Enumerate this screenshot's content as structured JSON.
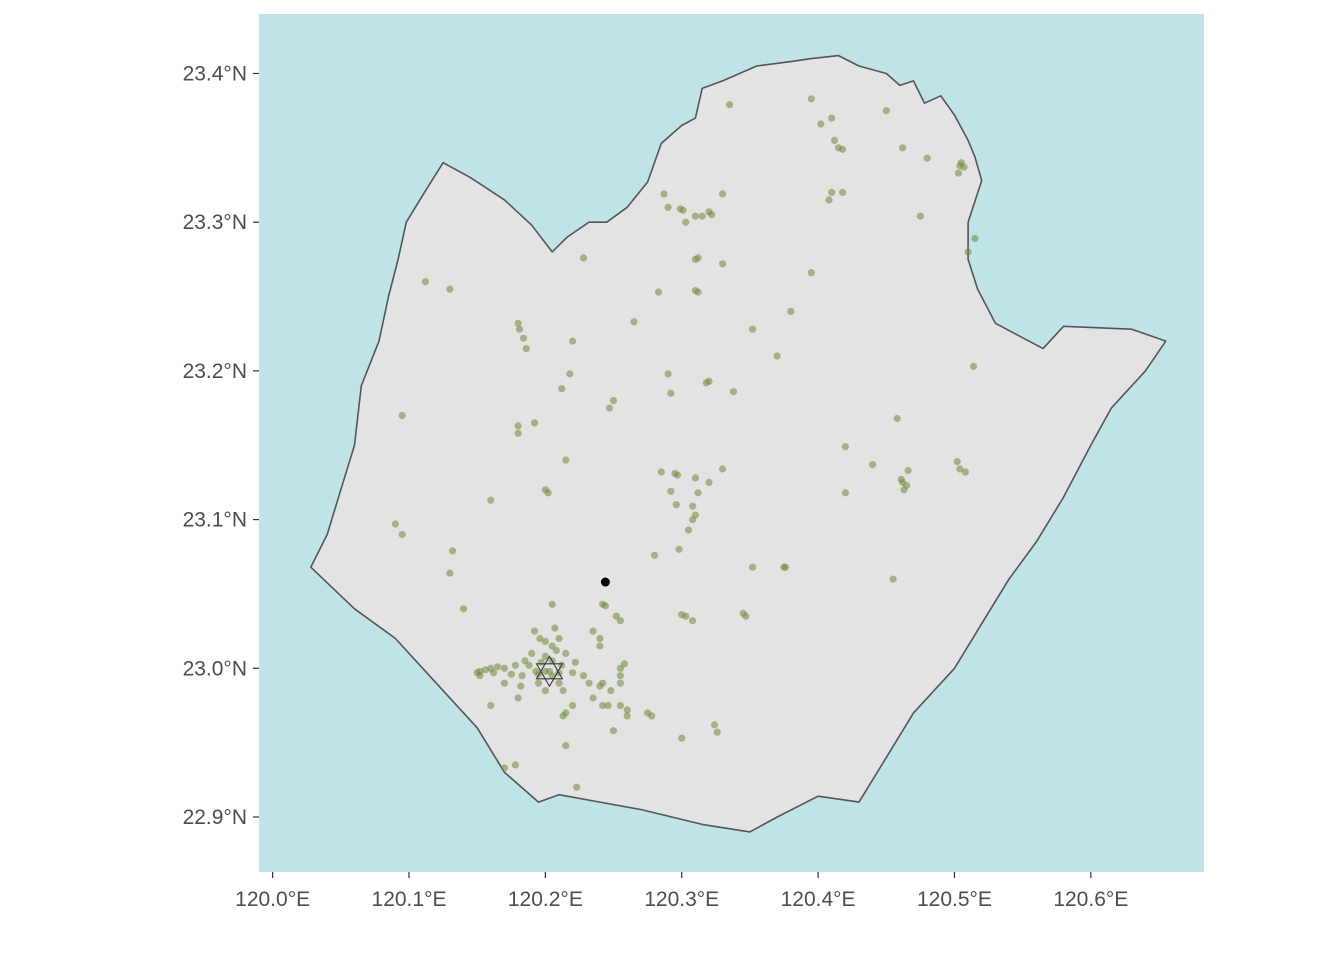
{
  "colors": {
    "sea": "#c0e3e8",
    "land": "#e3e3e3",
    "coast": "#555555",
    "point": "#6f8a3a",
    "centroid": "#000000",
    "tick_text": "#4d4d4d"
  },
  "map": {
    "x_range": [
      119.99,
      120.683
    ],
    "y_range": [
      22.863,
      23.44
    ],
    "x_ticks": [
      "120.0°E",
      "120.1°E",
      "120.2°E",
      "120.3°E",
      "120.4°E",
      "120.5°E",
      "120.6°E"
    ],
    "x_tick_values": [
      120.0,
      120.1,
      120.2,
      120.3,
      120.4,
      120.5,
      120.6
    ],
    "y_ticks": [
      "23.4°N",
      "23.3°N",
      "23.2°N",
      "23.1°N",
      "23.0°N",
      "22.9°N"
    ],
    "y_tick_values": [
      23.4,
      23.3,
      23.2,
      23.1,
      23.0,
      22.9
    ],
    "coastline": [
      [
        120.028,
        23.068
      ],
      [
        120.04,
        23.09
      ],
      [
        120.05,
        23.12
      ],
      [
        120.06,
        23.15
      ],
      [
        120.065,
        23.19
      ],
      [
        120.078,
        23.22
      ],
      [
        120.085,
        23.25
      ],
      [
        120.092,
        23.275
      ],
      [
        120.098,
        23.3
      ],
      [
        120.11,
        23.318
      ],
      [
        120.125,
        23.34
      ],
      [
        120.145,
        23.33
      ],
      [
        120.17,
        23.315
      ],
      [
        120.19,
        23.298
      ],
      [
        120.205,
        23.28
      ],
      [
        120.216,
        23.29
      ],
      [
        120.232,
        23.3
      ],
      [
        120.245,
        23.3
      ],
      [
        120.26,
        23.31
      ],
      [
        120.275,
        23.327
      ],
      [
        120.285,
        23.353
      ],
      [
        120.3,
        23.365
      ],
      [
        120.31,
        23.37
      ],
      [
        120.315,
        23.39
      ],
      [
        120.33,
        23.395
      ],
      [
        120.355,
        23.405
      ],
      [
        120.38,
        23.408
      ],
      [
        120.395,
        23.41
      ],
      [
        120.415,
        23.412
      ],
      [
        120.43,
        23.405
      ],
      [
        120.45,
        23.4
      ],
      [
        120.46,
        23.392
      ],
      [
        120.47,
        23.395
      ],
      [
        120.478,
        23.38
      ],
      [
        120.49,
        23.385
      ],
      [
        120.5,
        23.372
      ],
      [
        120.51,
        23.355
      ],
      [
        120.515,
        23.344
      ],
      [
        120.52,
        23.328
      ],
      [
        120.51,
        23.3
      ],
      [
        120.51,
        23.275
      ],
      [
        120.517,
        23.255
      ],
      [
        120.53,
        23.232
      ],
      [
        120.565,
        23.215
      ],
      [
        120.58,
        23.23
      ],
      [
        120.63,
        23.228
      ],
      [
        120.655,
        23.22
      ],
      [
        120.64,
        23.2
      ],
      [
        120.615,
        23.175
      ],
      [
        120.6,
        23.15
      ],
      [
        120.58,
        23.115
      ],
      [
        120.56,
        23.085
      ],
      [
        120.54,
        23.06
      ],
      [
        120.52,
        23.03
      ],
      [
        120.5,
        23.0
      ],
      [
        120.47,
        22.97
      ],
      [
        120.45,
        22.94
      ],
      [
        120.43,
        22.91
      ],
      [
        120.4,
        22.914
      ],
      [
        120.37,
        22.9
      ],
      [
        120.35,
        22.89
      ],
      [
        120.315,
        22.895
      ],
      [
        120.27,
        22.905
      ],
      [
        120.24,
        22.91
      ],
      [
        120.21,
        22.915
      ],
      [
        120.195,
        22.91
      ],
      [
        120.17,
        22.93
      ],
      [
        120.15,
        22.96
      ],
      [
        120.12,
        22.99
      ],
      [
        120.09,
        23.02
      ],
      [
        120.06,
        23.04
      ],
      [
        120.028,
        23.068
      ]
    ],
    "centroid": {
      "lon": 120.244,
      "lat": 23.058
    },
    "star_marker": {
      "lon": 120.203,
      "lat": 22.998
    },
    "points": [
      [
        120.335,
        23.379
      ],
      [
        120.395,
        23.383
      ],
      [
        120.45,
        23.375
      ],
      [
        120.41,
        23.37
      ],
      [
        120.402,
        23.366
      ],
      [
        120.412,
        23.355
      ],
      [
        120.415,
        23.35
      ],
      [
        120.418,
        23.349
      ],
      [
        120.462,
        23.35
      ],
      [
        120.505,
        23.34
      ],
      [
        120.507,
        23.337
      ],
      [
        120.503,
        23.333
      ],
      [
        120.504,
        23.338
      ],
      [
        120.48,
        23.343
      ],
      [
        120.287,
        23.319
      ],
      [
        120.33,
        23.319
      ],
      [
        120.41,
        23.32
      ],
      [
        120.418,
        23.32
      ],
      [
        120.408,
        23.315
      ],
      [
        120.29,
        23.31
      ],
      [
        120.299,
        23.309
      ],
      [
        120.301,
        23.308
      ],
      [
        120.31,
        23.304
      ],
      [
        120.315,
        23.304
      ],
      [
        120.32,
        23.307
      ],
      [
        120.322,
        23.305
      ],
      [
        120.303,
        23.3
      ],
      [
        120.475,
        23.304
      ],
      [
        120.515,
        23.289
      ],
      [
        120.51,
        23.28
      ],
      [
        120.228,
        23.276
      ],
      [
        120.312,
        23.276
      ],
      [
        120.31,
        23.275
      ],
      [
        120.33,
        23.272
      ],
      [
        120.395,
        23.266
      ],
      [
        120.112,
        23.26
      ],
      [
        120.13,
        23.255
      ],
      [
        120.283,
        23.253
      ],
      [
        120.31,
        23.254
      ],
      [
        120.312,
        23.253
      ],
      [
        120.38,
        23.24
      ],
      [
        120.18,
        23.232
      ],
      [
        120.265,
        23.233
      ],
      [
        120.181,
        23.228
      ],
      [
        120.352,
        23.228
      ],
      [
        120.184,
        23.222
      ],
      [
        120.22,
        23.22
      ],
      [
        120.186,
        23.215
      ],
      [
        120.37,
        23.21
      ],
      [
        120.514,
        23.203
      ],
      [
        120.218,
        23.198
      ],
      [
        120.29,
        23.198
      ],
      [
        120.32,
        23.193
      ],
      [
        120.318,
        23.192
      ],
      [
        120.212,
        23.188
      ],
      [
        120.338,
        23.186
      ],
      [
        120.292,
        23.185
      ],
      [
        120.25,
        23.18
      ],
      [
        120.247,
        23.175
      ],
      [
        120.095,
        23.17
      ],
      [
        120.458,
        23.168
      ],
      [
        120.18,
        23.163
      ],
      [
        120.192,
        23.165
      ],
      [
        120.18,
        23.158
      ],
      [
        120.42,
        23.149
      ],
      [
        120.502,
        23.139
      ],
      [
        120.215,
        23.14
      ],
      [
        120.44,
        23.137
      ],
      [
        120.285,
        23.132
      ],
      [
        120.295,
        23.131
      ],
      [
        120.297,
        23.13
      ],
      [
        120.504,
        23.134
      ],
      [
        120.508,
        23.132
      ],
      [
        120.33,
        23.134
      ],
      [
        120.466,
        23.133
      ],
      [
        120.31,
        23.128
      ],
      [
        120.32,
        23.125
      ],
      [
        120.462,
        23.125
      ],
      [
        120.465,
        23.123
      ],
      [
        120.461,
        23.127
      ],
      [
        120.463,
        23.12
      ],
      [
        120.2,
        23.12
      ],
      [
        120.202,
        23.118
      ],
      [
        120.292,
        23.119
      ],
      [
        120.312,
        23.118
      ],
      [
        120.42,
        23.118
      ],
      [
        120.16,
        23.113
      ],
      [
        120.296,
        23.11
      ],
      [
        120.308,
        23.109
      ],
      [
        120.31,
        23.103
      ],
      [
        120.09,
        23.097
      ],
      [
        120.095,
        23.09
      ],
      [
        120.308,
        23.1
      ],
      [
        120.305,
        23.093
      ],
      [
        120.132,
        23.079
      ],
      [
        120.298,
        23.08
      ],
      [
        120.28,
        23.076
      ],
      [
        120.352,
        23.068
      ],
      [
        120.376,
        23.068
      ],
      [
        120.375,
        23.068
      ],
      [
        120.455,
        23.06
      ],
      [
        120.13,
        23.064
      ],
      [
        120.205,
        23.043
      ],
      [
        120.244,
        23.042
      ],
      [
        120.242,
        23.043
      ],
      [
        120.14,
        23.04
      ],
      [
        120.252,
        23.035
      ],
      [
        120.3,
        23.036
      ],
      [
        120.303,
        23.035
      ],
      [
        120.308,
        23.032
      ],
      [
        120.345,
        23.037
      ],
      [
        120.347,
        23.035
      ],
      [
        120.255,
        23.032
      ],
      [
        120.235,
        23.025
      ],
      [
        120.207,
        23.027
      ],
      [
        120.196,
        23.02
      ],
      [
        120.192,
        23.025
      ],
      [
        120.2,
        23.018
      ],
      [
        120.205,
        23.015
      ],
      [
        120.208,
        23.012
      ],
      [
        120.215,
        23.01
      ],
      [
        120.222,
        23.004
      ],
      [
        120.2,
        23.008
      ],
      [
        120.19,
        23.01
      ],
      [
        120.185,
        23.005
      ],
      [
        120.178,
        23.002
      ],
      [
        120.17,
        23.0
      ],
      [
        120.165,
        23.001
      ],
      [
        120.16,
        23.0
      ],
      [
        120.156,
        22.999
      ],
      [
        120.152,
        22.998
      ],
      [
        120.15,
        22.997
      ],
      [
        120.152,
        22.995
      ],
      [
        120.162,
        22.997
      ],
      [
        120.175,
        22.996
      ],
      [
        120.183,
        22.995
      ],
      [
        120.195,
        22.996
      ],
      [
        120.2,
        22.998
      ],
      [
        120.205,
        22.995
      ],
      [
        120.21,
        22.99
      ],
      [
        120.213,
        22.985
      ],
      [
        120.195,
        22.99
      ],
      [
        120.2,
        22.985
      ],
      [
        120.193,
        22.998
      ],
      [
        120.188,
        23.002
      ],
      [
        120.197,
        23.004
      ],
      [
        120.203,
        22.998
      ],
      [
        120.21,
        22.997
      ],
      [
        120.205,
        23.005
      ],
      [
        120.212,
        23.002
      ],
      [
        120.22,
        22.997
      ],
      [
        120.228,
        22.995
      ],
      [
        120.232,
        22.99
      ],
      [
        120.24,
        22.988
      ],
      [
        120.248,
        22.985
      ],
      [
        120.242,
        22.99
      ],
      [
        120.235,
        22.98
      ],
      [
        120.246,
        22.975
      ],
      [
        120.242,
        22.975
      ],
      [
        120.22,
        22.975
      ],
      [
        120.215,
        22.97
      ],
      [
        120.213,
        22.968
      ],
      [
        120.18,
        22.98
      ],
      [
        120.16,
        22.975
      ],
      [
        120.17,
        22.99
      ],
      [
        120.182,
        22.988
      ],
      [
        120.255,
        22.99
      ],
      [
        120.255,
        22.975
      ],
      [
        120.26,
        22.972
      ],
      [
        120.26,
        22.968
      ],
      [
        120.275,
        22.97
      ],
      [
        120.278,
        22.968
      ],
      [
        120.25,
        22.958
      ],
      [
        120.255,
        23.0
      ],
      [
        120.258,
        23.003
      ],
      [
        120.324,
        22.962
      ],
      [
        120.326,
        22.957
      ],
      [
        120.3,
        22.953
      ],
      [
        120.215,
        22.948
      ],
      [
        120.17,
        22.933
      ],
      [
        120.178,
        22.935
      ],
      [
        120.223,
        22.92
      ],
      [
        120.24,
        23.02
      ],
      [
        120.24,
        23.015
      ],
      [
        120.21,
        23.02
      ],
      [
        120.255,
        22.995
      ]
    ]
  }
}
